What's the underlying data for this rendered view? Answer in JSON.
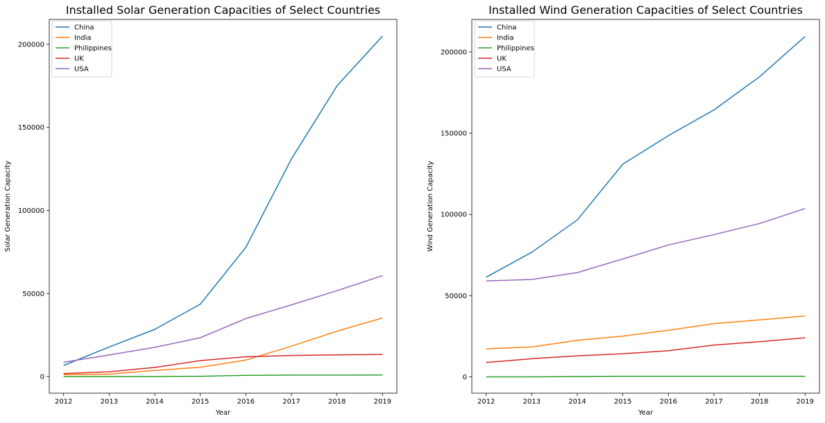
{
  "colors": {
    "China": "#1f77b4",
    "India": "#ff7f0e",
    "Philippines": "#2ca02c",
    "UK": "#d62728",
    "USA": "#9467bd"
  },
  "chart_data": [
    {
      "type": "line",
      "title": "Installed Solar Generation Capacities of Select Countries",
      "xlabel": "Year",
      "ylabel": "Solar Generation Capacity",
      "x": [
        2012,
        2013,
        2014,
        2015,
        2016,
        2017,
        2018,
        2019
      ],
      "xticks": [
        "2012",
        "2013",
        "2014",
        "2015",
        "2016",
        "2017",
        "2018",
        "2019"
      ],
      "yticks": [
        "0",
        "50000",
        "100000",
        "150000",
        "200000"
      ],
      "ylim": [
        -10000,
        215000
      ],
      "grid": false,
      "legend": "top-left",
      "series": [
        {
          "name": "China",
          "values": [
            6700,
            17800,
            28400,
            43600,
            77800,
            131000,
            175000,
            205000
          ]
        },
        {
          "name": "India",
          "values": [
            1200,
            1500,
            3700,
            5600,
            9900,
            18300,
            27300,
            35300
          ]
        },
        {
          "name": "Philippines",
          "values": [
            0,
            0,
            0,
            170,
            770,
            890,
            910,
            920
          ]
        },
        {
          "name": "UK",
          "values": [
            1800,
            2900,
            5500,
            9600,
            11900,
            12700,
            13100,
            13300
          ]
        },
        {
          "name": "USA",
          "values": [
            8600,
            13000,
            17600,
            23400,
            34900,
            43200,
            51700,
            60800
          ]
        }
      ]
    },
    {
      "type": "line",
      "title": "Installed Wind Generation Capacities of Select Countries",
      "xlabel": "Year",
      "ylabel": "Wind Generation Capacity",
      "x": [
        2012,
        2013,
        2014,
        2015,
        2016,
        2017,
        2018,
        2019
      ],
      "xticks": [
        "2012",
        "2013",
        "2014",
        "2015",
        "2016",
        "2017",
        "2018",
        "2019"
      ],
      "yticks": [
        "0",
        "50000",
        "100000",
        "150000",
        "200000"
      ],
      "ylim": [
        -10000,
        220000
      ],
      "grid": false,
      "legend": "top-left",
      "series": [
        {
          "name": "China",
          "values": [
            61400,
            76700,
            96600,
            131000,
            148500,
            164300,
            184700,
            209500
          ]
        },
        {
          "name": "India",
          "values": [
            17300,
            18400,
            22500,
            25100,
            28700,
            32800,
            35100,
            37500
          ]
        },
        {
          "name": "Philippines",
          "values": [
            33,
            33,
            220,
            430,
            430,
            430,
            430,
            430
          ]
        },
        {
          "name": "UK",
          "values": [
            8900,
            11200,
            13000,
            14300,
            16100,
            19600,
            21700,
            24100
          ]
        },
        {
          "name": "USA",
          "values": [
            59100,
            60000,
            64200,
            72600,
            81200,
            87600,
            94400,
            103600
          ]
        }
      ]
    }
  ]
}
